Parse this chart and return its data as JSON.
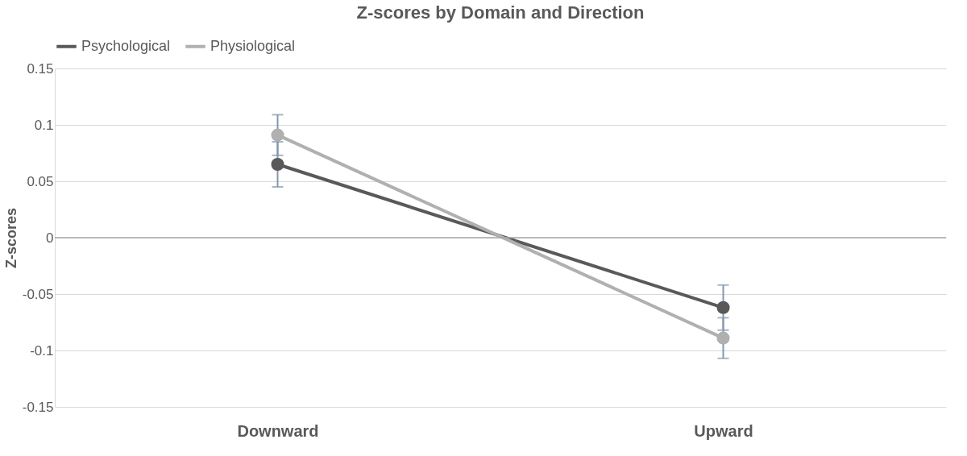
{
  "chart_data": {
    "type": "line",
    "title": "Z-scores by Domain and Direction",
    "ylabel": "Z-scores",
    "categories": [
      "Downward",
      "Upward"
    ],
    "series": [
      {
        "name": "Psychological",
        "color": "#595959",
        "values": [
          0.065,
          -0.062
        ],
        "errors": [
          0.02,
          0.02
        ]
      },
      {
        "name": "Physiological",
        "color": "#b0b0b0",
        "values": [
          0.091,
          -0.089
        ],
        "errors": [
          0.018,
          0.018
        ]
      }
    ],
    "ylim": [
      -0.15,
      0.15
    ],
    "yticks": [
      -0.15,
      -0.1,
      -0.05,
      0,
      0.05,
      0.1,
      0.15
    ],
    "grid": "y",
    "legend": "top",
    "marker": "circle",
    "line_style": "solid"
  }
}
